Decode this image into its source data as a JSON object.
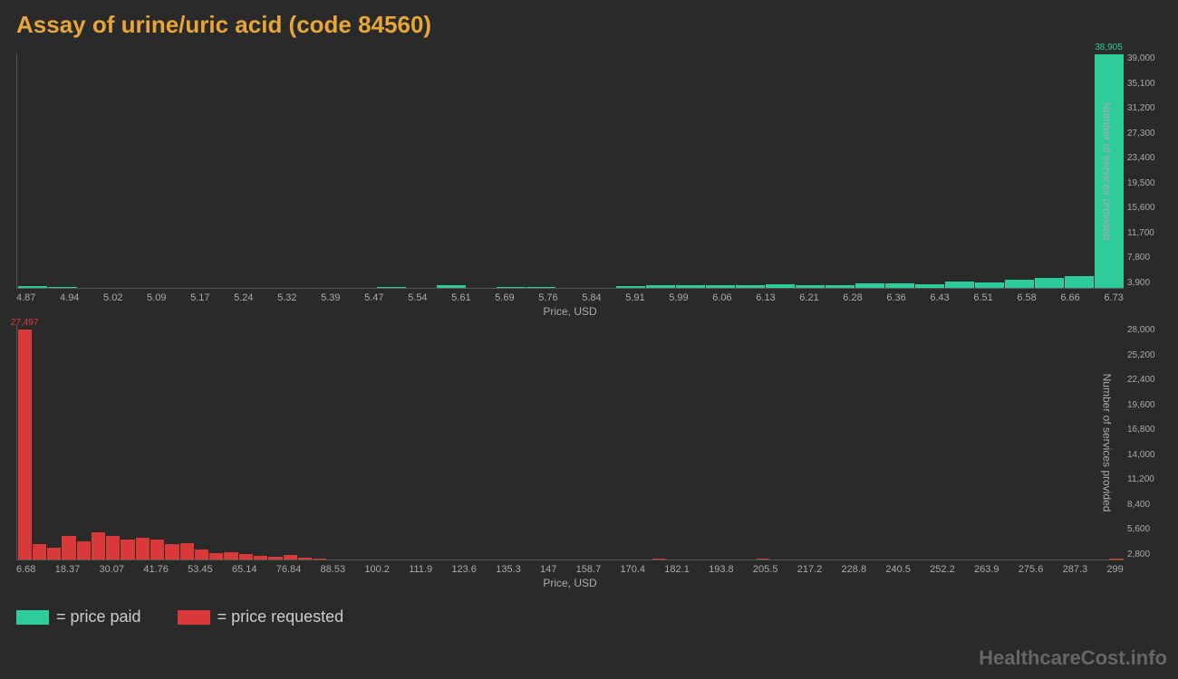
{
  "title": "Assay of urine/uric acid (code 84560)",
  "watermark": "HealthcareCost.info",
  "colors": {
    "background": "#2a2a2a",
    "title": "#e8a53a",
    "axis_text": "#aaaaaa",
    "series_paid": "#2ecc9a",
    "series_requested": "#d83a3a"
  },
  "legend": {
    "paid": "= price paid",
    "requested": "= price requested"
  },
  "chart1": {
    "type": "bar",
    "x_label": "Price, USD",
    "y_label": "Number of services provided",
    "x_ticks": [
      "4.87",
      "4.94",
      "5.02",
      "5.09",
      "5.17",
      "5.24",
      "5.32",
      "5.39",
      "5.47",
      "5.54",
      "5.61",
      "5.69",
      "5.76",
      "5.84",
      "5.91",
      "5.99",
      "6.06",
      "6.13",
      "6.21",
      "6.28",
      "6.36",
      "6.43",
      "6.51",
      "6.58",
      "6.66",
      "6.73"
    ],
    "y_ticks": [
      "3,900",
      "7,800",
      "11,700",
      "15,600",
      "19,500",
      "23,400",
      "27,300",
      "31,200",
      "35,100",
      "39,000"
    ],
    "y_max": 39000,
    "max_label": "38,905",
    "values": [
      300,
      200,
      0,
      0,
      0,
      0,
      0,
      0,
      0,
      0,
      0,
      0,
      150,
      0,
      400,
      0,
      200,
      200,
      0,
      0,
      300,
      400,
      400,
      500,
      400,
      600,
      500,
      400,
      700,
      800,
      600,
      1000,
      900,
      1400,
      1600,
      1900,
      38905
    ]
  },
  "chart2": {
    "type": "bar",
    "x_label": "Price, USD",
    "y_label": "Number of services provided",
    "x_ticks": [
      "6.68",
      "18.37",
      "30.07",
      "41.76",
      "53.45",
      "65.14",
      "76.84",
      "88.53",
      "100.2",
      "111.9",
      "123.6",
      "135.3",
      "147",
      "158.7",
      "170.4",
      "182.1",
      "193.8",
      "205.5",
      "217.2",
      "228.8",
      "240.5",
      "252.2",
      "263.9",
      "275.6",
      "287.3",
      "299"
    ],
    "y_ticks": [
      "2,800",
      "5,600",
      "8,400",
      "11,200",
      "14,000",
      "16,800",
      "19,600",
      "22,400",
      "25,200",
      "28,000"
    ],
    "y_max": 28000,
    "max_label": "27,497",
    "values": [
      27497,
      1800,
      1400,
      2800,
      2200,
      3200,
      2800,
      2400,
      2600,
      2400,
      1800,
      2000,
      1200,
      800,
      900,
      600,
      400,
      300,
      500,
      200,
      100,
      0,
      0,
      0,
      0,
      0,
      0,
      0,
      0,
      0,
      0,
      0,
      0,
      0,
      0,
      0,
      0,
      0,
      0,
      0,
      0,
      0,
      0,
      100,
      0,
      0,
      0,
      0,
      0,
      0,
      100,
      0,
      0,
      0,
      0,
      0,
      0,
      0,
      0,
      0,
      0,
      0,
      0,
      0,
      0,
      0,
      0,
      0,
      0,
      0,
      0,
      0,
      0,
      0,
      100
    ]
  }
}
